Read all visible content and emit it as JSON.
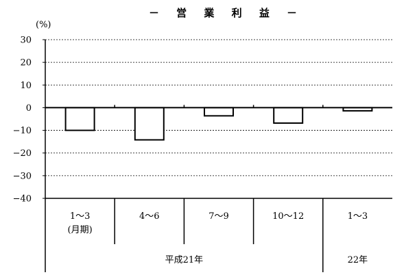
{
  "chart_data": {
    "type": "bar",
    "title": "－ 営 業 利 益 －",
    "ylabel": "(%)",
    "ylim": [
      -40,
      30
    ],
    "yticks": [
      30,
      20,
      10,
      0,
      -10,
      -20,
      -30,
      -40
    ],
    "ytick_labels": [
      "30",
      "20",
      "10",
      "0",
      "−10",
      "−20",
      "−30",
      "−40"
    ],
    "grid": true,
    "categories": [
      {
        "lines": [
          "1～3",
          "(月期)"
        ]
      },
      {
        "lines": [
          "4～6"
        ]
      },
      {
        "lines": [
          "7～9"
        ]
      },
      {
        "lines": [
          "10～12"
        ]
      },
      {
        "lines": [
          "1～3"
        ]
      }
    ],
    "values": [
      -10.0,
      -14.2,
      -3.6,
      -6.8,
      -1.4
    ],
    "groups": [
      {
        "label": "平成21年",
        "span": 4
      },
      {
        "label": "22年",
        "span": 1
      }
    ]
  }
}
